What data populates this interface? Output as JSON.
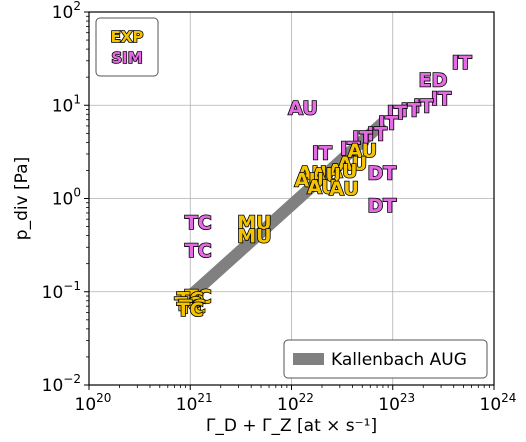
{
  "chart_data": {
    "type": "scatter",
    "xlabel": "Γ_D + Γ_Z [at × s⁻¹]",
    "ylabel": "p_div [Pa]",
    "xscale": "log",
    "yscale": "log",
    "xlim": [
      1e+20,
      1e+24
    ],
    "ylim": [
      0.01,
      100
    ],
    "grid": true,
    "x_ticks": [
      {
        "value": 1e+20,
        "base": "10",
        "exp": "20"
      },
      {
        "value": 1e+21,
        "base": "10",
        "exp": "21"
      },
      {
        "value": 1e+22,
        "base": "10",
        "exp": "22"
      },
      {
        "value": 1e+23,
        "base": "10",
        "exp": "23"
      },
      {
        "value": 1e+24,
        "base": "10",
        "exp": "24"
      }
    ],
    "y_ticks": [
      {
        "value": 0.01,
        "base": "10",
        "exp": "−2"
      },
      {
        "value": 0.1,
        "base": "10",
        "exp": "−1"
      },
      {
        "value": 1,
        "base": "10",
        "exp": "0"
      },
      {
        "value": 10,
        "base": "10",
        "exp": "1"
      },
      {
        "value": 100,
        "base": "10",
        "exp": "2"
      }
    ],
    "colors": {
      "exp": "#f5c400",
      "sim": "#e46be4",
      "fit": "#808080"
    },
    "legend_markers": {
      "placement": "top-left",
      "entries": [
        {
          "label": "EXP",
          "color": "#f5c400"
        },
        {
          "label": "SIM",
          "color": "#e46be4"
        }
      ]
    },
    "legend_line": {
      "placement": "lower-right",
      "label": "Kallenbach AUG",
      "color": "#808080"
    },
    "fit_line": {
      "name": "Kallenbach AUG",
      "x": [
        1e+21,
        8e+22
      ],
      "y": [
        0.09,
        6.5
      ]
    },
    "series": [
      {
        "name": "SIM",
        "color": "#e46be4",
        "points": [
          {
            "x": 4.8e+23,
            "y": 29,
            "label": "IT"
          },
          {
            "x": 2.5e+23,
            "y": 19,
            "label": "ED"
          },
          {
            "x": 3e+23,
            "y": 12,
            "label": "IT"
          },
          {
            "x": 2e+23,
            "y": 10,
            "label": "IT"
          },
          {
            "x": 1.5e+23,
            "y": 9,
            "label": "IT"
          },
          {
            "x": 1.1e+23,
            "y": 8.5,
            "label": "IT"
          },
          {
            "x": 9e+22,
            "y": 6.5,
            "label": "IT"
          },
          {
            "x": 1.3e+22,
            "y": 9.5,
            "label": "AU"
          },
          {
            "x": 7e+22,
            "y": 5,
            "label": "IT"
          },
          {
            "x": 5e+22,
            "y": 4.5,
            "label": "IT"
          },
          {
            "x": 3.8e+22,
            "y": 3.5,
            "label": "IT"
          },
          {
            "x": 2e+22,
            "y": 3.1,
            "label": "IT"
          },
          {
            "x": 7.8e+22,
            "y": 1.9,
            "label": "DT"
          },
          {
            "x": 7.8e+22,
            "y": 0.85,
            "label": "DT"
          },
          {
            "x": 1.2e+21,
            "y": 0.56,
            "label": "TC"
          },
          {
            "x": 1.2e+21,
            "y": 0.28,
            "label": "TC"
          }
        ]
      },
      {
        "name": "EXP",
        "color": "#f5c400",
        "points": [
          {
            "x": 5e+22,
            "y": 3.3,
            "label": "AU"
          },
          {
            "x": 4e+22,
            "y": 2.4,
            "label": "AU"
          },
          {
            "x": 3.2e+22,
            "y": 2.0,
            "label": "AU"
          },
          {
            "x": 1.6e+22,
            "y": 1.9,
            "label": "AU"
          },
          {
            "x": 2.2e+22,
            "y": 1.8,
            "label": "AU"
          },
          {
            "x": 1.5e+22,
            "y": 1.6,
            "label": "AU"
          },
          {
            "x": 2e+22,
            "y": 1.35,
            "label": "AU"
          },
          {
            "x": 3.3e+22,
            "y": 1.3,
            "label": "AU"
          },
          {
            "x": 4.3e+21,
            "y": 0.56,
            "label": "MU"
          },
          {
            "x": 4.3e+21,
            "y": 0.4,
            "label": "MU"
          },
          {
            "x": 1.2e+21,
            "y": 0.09,
            "label": "TC"
          },
          {
            "x": 1e+21,
            "y": 0.085,
            "label": "TC"
          },
          {
            "x": 9.5e+20,
            "y": 0.075,
            "label": "TC"
          },
          {
            "x": 1.05e+21,
            "y": 0.07,
            "label": "TC"
          },
          {
            "x": 1e+21,
            "y": 0.065,
            "label": "TC"
          }
        ]
      }
    ]
  }
}
